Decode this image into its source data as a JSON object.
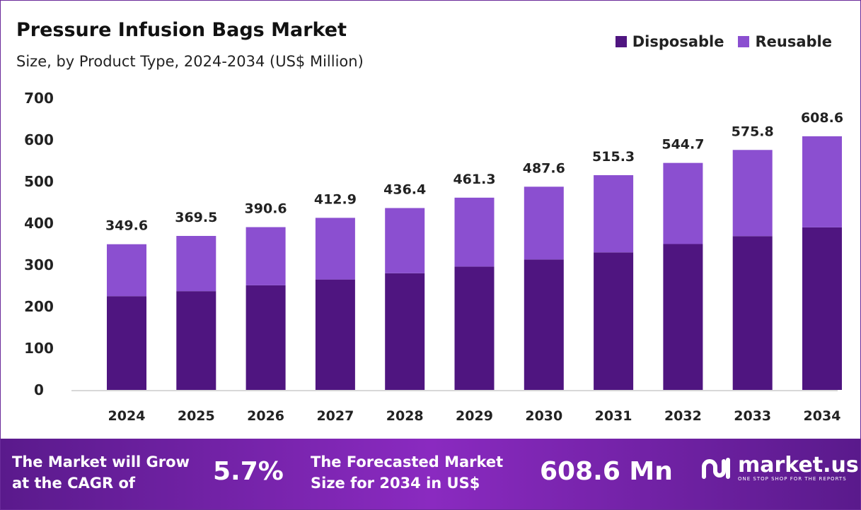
{
  "chart_data": {
    "type": "bar",
    "stacked": true,
    "title": "Pressure Infusion Bags Market",
    "subtitle": "Size, by Product Type, 2024-2034 (US$ Million)",
    "categories": [
      "2024",
      "2025",
      "2026",
      "2027",
      "2028",
      "2029",
      "2030",
      "2031",
      "2032",
      "2033",
      "2034"
    ],
    "series": [
      {
        "name": "Disposable",
        "color": "#4f1580",
        "values": [
          225,
          237,
          251,
          265,
          280,
          296,
          313,
          330,
          350,
          369,
          390
        ]
      },
      {
        "name": "Reusable",
        "color": "#8b4fd0",
        "values": [
          124.6,
          132.5,
          139.6,
          147.9,
          156.4,
          165.3,
          174.6,
          185.3,
          194.7,
          206.8,
          218.6
        ]
      }
    ],
    "totals": [
      "349.6",
      "369.5",
      "390.6",
      "412.9",
      "436.4",
      "461.3",
      "487.6",
      "515.3",
      "544.7",
      "575.8",
      "608.6"
    ],
    "ylim": [
      0,
      700
    ],
    "yticks": [
      "0",
      "100",
      "200",
      "300",
      "400",
      "500",
      "600",
      "700"
    ],
    "grid": false,
    "legend_position": "top-right"
  },
  "footer": {
    "cagr_label_1": "The Market will Grow",
    "cagr_label_2": "at the CAGR of",
    "cagr_value": "5.7%",
    "forecast_label_1": "The Forecasted Market",
    "forecast_label_2": "Size for 2034 in US$",
    "forecast_value": "608.6 Mn",
    "logo_text": "market.us",
    "logo_tagline": "ONE STOP SHOP FOR THE REPORTS"
  }
}
